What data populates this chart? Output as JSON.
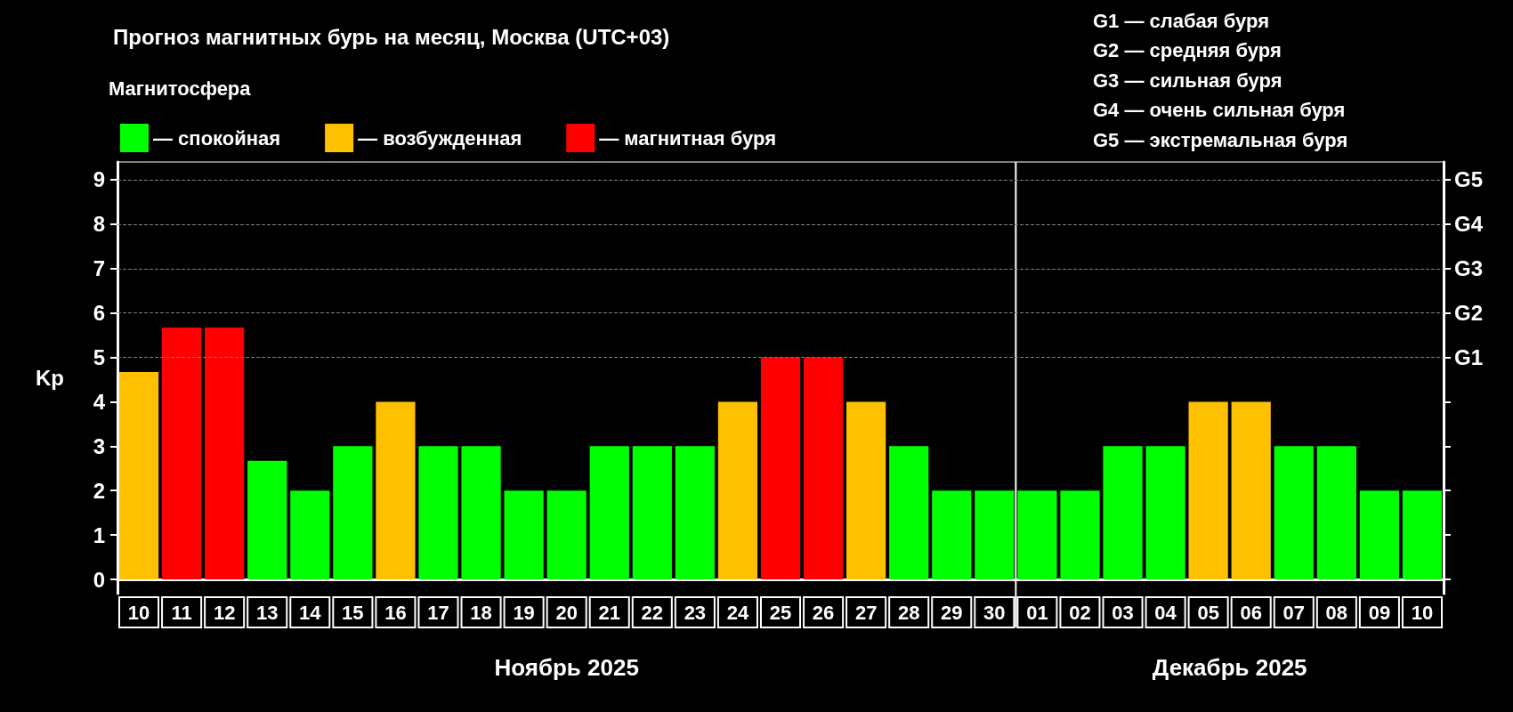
{
  "chart_data": {
    "type": "bar",
    "title": "Прогноз магнитных бурь на месяц, Москва (UTC+03)",
    "ylabel": "Kp",
    "legend_title": "Магнитосфера",
    "legend": "top left",
    "categories": [
      "10",
      "11",
      "12",
      "13",
      "14",
      "15",
      "16",
      "17",
      "18",
      "19",
      "20",
      "21",
      "22",
      "23",
      "24",
      "25",
      "26",
      "27",
      "28",
      "29",
      "30",
      "01",
      "02",
      "03",
      "04",
      "05",
      "06",
      "07",
      "08",
      "09",
      "10"
    ],
    "series": [
      {
        "name": "— спокойная",
        "color": "#00ff00",
        "values": [
          null,
          null,
          null,
          2.67,
          2,
          3,
          null,
          3,
          3,
          2,
          2,
          3,
          3,
          3,
          null,
          null,
          null,
          null,
          3,
          2,
          2,
          2,
          2,
          3,
          3,
          null,
          null,
          3,
          3,
          2,
          2
        ]
      },
      {
        "name": "— возбужденная",
        "color": "#ffc000",
        "values": [
          4.67,
          null,
          null,
          null,
          null,
          null,
          4,
          null,
          null,
          null,
          null,
          null,
          null,
          null,
          4,
          null,
          null,
          4,
          null,
          null,
          null,
          null,
          null,
          null,
          null,
          4,
          4,
          null,
          null,
          null,
          null
        ]
      },
      {
        "name": "— магнитная буря",
        "color": "#ff0000",
        "values": [
          null,
          5.67,
          5.67,
          null,
          null,
          null,
          null,
          null,
          null,
          null,
          null,
          null,
          null,
          null,
          null,
          5,
          5,
          null,
          null,
          null,
          null,
          null,
          null,
          null,
          null,
          null,
          null,
          null,
          null,
          null,
          null
        ]
      }
    ],
    "ylim": [
      -0.32,
      9.4
    ],
    "yticks": [
      0,
      1,
      2,
      3,
      4,
      5,
      6,
      7,
      8,
      9
    ],
    "ref_lines": [
      {
        "axis": "y",
        "value": 5,
        "label": "G1",
        "color": "#808080",
        "line_style": "dashed"
      },
      {
        "axis": "y",
        "value": 6,
        "label": "G2",
        "color": "#808080",
        "line_style": "dashed"
      },
      {
        "axis": "y",
        "value": 7,
        "label": "G3",
        "color": "#808080",
        "line_style": "dashed"
      },
      {
        "axis": "y",
        "value": 8,
        "label": "G4",
        "color": "#808080",
        "line_style": "dashed"
      },
      {
        "axis": "y",
        "value": 9,
        "label": "G5",
        "color": "#808080",
        "line_style": "dashed"
      },
      {
        "axis": "x",
        "value": "01",
        "color": "#ffffff",
        "line_style": "solid"
      }
    ],
    "annotations": [
      "G1 — слабая буря",
      "G2 — средняя буря",
      "G3 — сильная буря",
      "G4 — очень сильная буря",
      "G5 — экстремальная буря",
      "Ноябрь 2025",
      "Декабрь 2025"
    ]
  }
}
